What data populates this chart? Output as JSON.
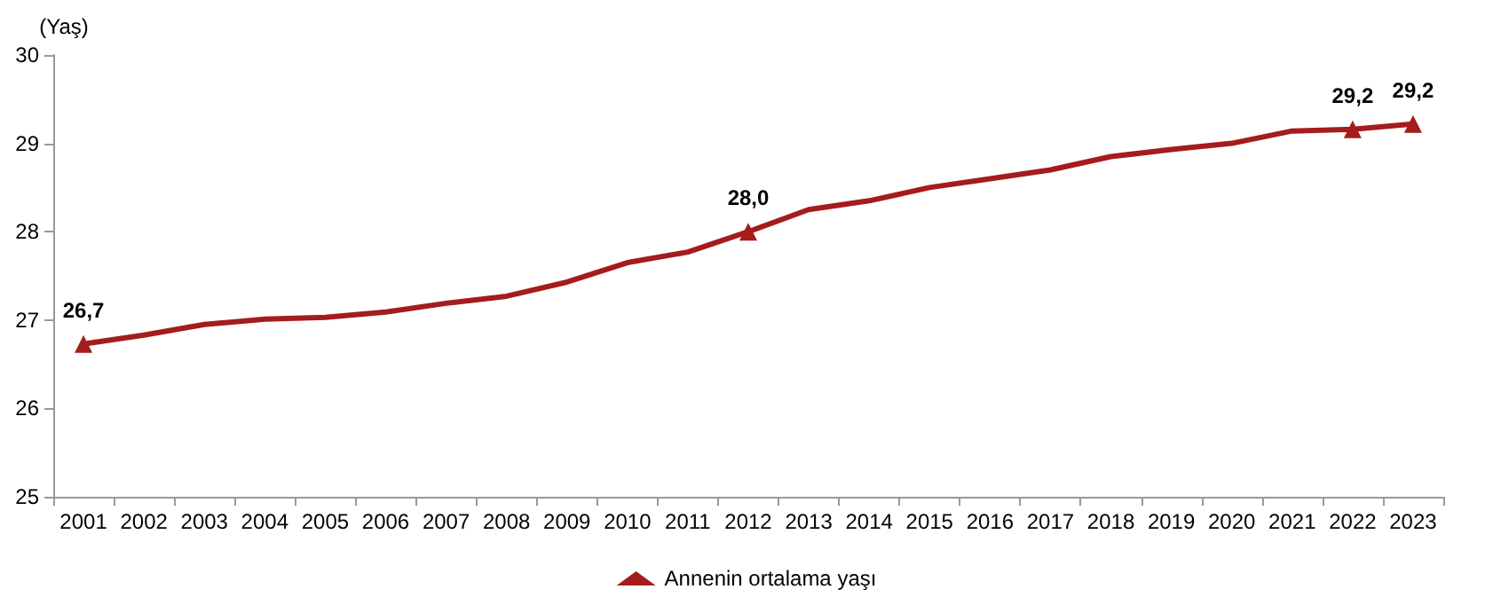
{
  "chart_data": {
    "type": "line",
    "ylabel": "(Yaş)",
    "categories": [
      "2001",
      "2002",
      "2003",
      "2004",
      "2005",
      "2006",
      "2007",
      "2008",
      "2009",
      "2010",
      "2011",
      "2012",
      "2013",
      "2014",
      "2015",
      "2016",
      "2017",
      "2018",
      "2019",
      "2020",
      "2021",
      "2022",
      "2023"
    ],
    "series": [
      {
        "name": "Annenin ortalama yaşı",
        "color": "#a51c1c",
        "values": [
          26.73,
          26.83,
          26.95,
          27.01,
          27.03,
          27.09,
          27.19,
          27.27,
          27.43,
          27.65,
          27.77,
          28.0,
          28.25,
          28.35,
          28.5,
          28.6,
          28.7,
          28.85,
          28.93,
          29.0,
          29.14,
          29.16,
          29.22
        ],
        "value_labels": [
          "26,7",
          null,
          null,
          null,
          null,
          null,
          null,
          null,
          null,
          null,
          null,
          "28,0",
          null,
          null,
          null,
          null,
          null,
          null,
          null,
          null,
          null,
          "29,2",
          "29,2"
        ]
      }
    ],
    "ylim": [
      25,
      30
    ],
    "yticks": [
      25,
      26,
      27,
      28,
      29,
      30
    ],
    "grid": false,
    "legend": "bottom",
    "line_style": "solid"
  }
}
